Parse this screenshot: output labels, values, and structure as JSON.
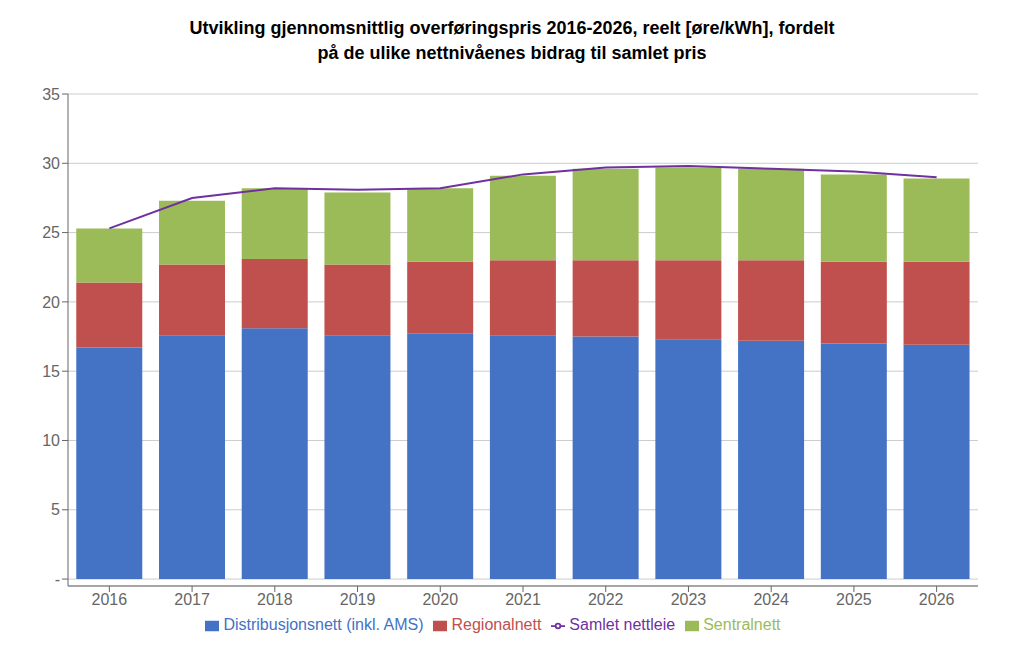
{
  "chart_data": {
    "type": "bar",
    "stacked": true,
    "title": "Utvikling gjennomsnittlig overføringspris 2016-2026, reelt [øre/kWh], fordelt\npå de ulike nettnivåenes bidrag til samlet pris",
    "categories": [
      "2016",
      "2017",
      "2018",
      "2019",
      "2020",
      "2021",
      "2022",
      "2023",
      "2024",
      "2025",
      "2026"
    ],
    "series": [
      {
        "name": "Distribusjonsnett (inkl. AMS)",
        "type": "bar",
        "color": "#4472C4",
        "values": [
          16.7,
          17.6,
          18.1,
          17.6,
          17.7,
          17.6,
          17.5,
          17.3,
          17.2,
          17.0,
          16.9
        ]
      },
      {
        "name": "Regionalnett",
        "type": "bar",
        "color": "#C0504D",
        "values": [
          4.7,
          5.1,
          5.0,
          5.1,
          5.2,
          5.4,
          5.5,
          5.7,
          5.8,
          5.9,
          6.0
        ]
      },
      {
        "name": "Sentralnett",
        "type": "bar",
        "color": "#9BBB59",
        "values": [
          3.9,
          4.6,
          5.1,
          5.2,
          5.3,
          6.1,
          6.6,
          6.7,
          6.6,
          6.3,
          6.0
        ]
      },
      {
        "name": "Samlet nettleie",
        "type": "line",
        "color": "#7030A0",
        "values": [
          25.3,
          27.5,
          28.2,
          28.1,
          28.2,
          29.2,
          29.7,
          29.8,
          29.6,
          29.4,
          29.0
        ]
      }
    ],
    "ylim": [
      -0.5,
      35
    ],
    "yticks": [
      {
        "value": 0,
        "label": "-"
      },
      5,
      10,
      15,
      20,
      25,
      30,
      35
    ],
    "grid": true,
    "legend": "bottom"
  }
}
